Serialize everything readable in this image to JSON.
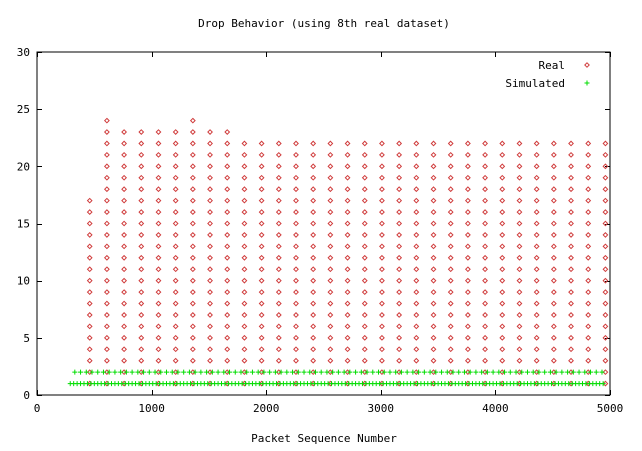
{
  "chart_data": {
    "type": "scatter",
    "title": "Drop Behavior (using 8th real dataset)",
    "xlabel": "Packet Sequence Number",
    "ylabel": "",
    "xlim": [
      0,
      5000
    ],
    "ylim": [
      0,
      30
    ],
    "xticks": [
      0,
      1000,
      2000,
      3000,
      4000,
      5000
    ],
    "yticks": [
      0,
      5,
      10,
      15,
      20,
      25,
      30
    ],
    "xtick_labels": [
      "0",
      "1000",
      "2000",
      "3000",
      "4000",
      "5000"
    ],
    "ytick_labels": [
      "0",
      "5",
      "10",
      "15",
      "20",
      "25",
      "30"
    ],
    "grid": false,
    "legend": {
      "position": "top-right"
    },
    "series": [
      {
        "name": "Real",
        "marker": "diamond",
        "color": "#d03c3c",
        "columns": [
          {
            "x": 460,
            "ymin": 1,
            "ymax": 17
          },
          {
            "x": 610,
            "ymin": 1,
            "ymax": 24
          },
          {
            "x": 760,
            "ymin": 1,
            "ymax": 23
          },
          {
            "x": 910,
            "ymin": 1,
            "ymax": 23
          },
          {
            "x": 1060,
            "ymin": 1,
            "ymax": 23
          },
          {
            "x": 1210,
            "ymin": 1,
            "ymax": 23
          },
          {
            "x": 1360,
            "ymin": 1,
            "ymax": 24
          },
          {
            "x": 1510,
            "ymin": 1,
            "ymax": 23
          },
          {
            "x": 1660,
            "ymin": 1,
            "ymax": 23
          },
          {
            "x": 1810,
            "ymin": 1,
            "ymax": 22
          },
          {
            "x": 1960,
            "ymin": 1,
            "ymax": 22
          },
          {
            "x": 2110,
            "ymin": 1,
            "ymax": 22
          },
          {
            "x": 2260,
            "ymin": 1,
            "ymax": 22
          },
          {
            "x": 2410,
            "ymin": 1,
            "ymax": 22
          },
          {
            "x": 2560,
            "ymin": 1,
            "ymax": 22
          },
          {
            "x": 2710,
            "ymin": 1,
            "ymax": 22
          },
          {
            "x": 2860,
            "ymin": 1,
            "ymax": 22
          },
          {
            "x": 3010,
            "ymin": 1,
            "ymax": 22
          },
          {
            "x": 3160,
            "ymin": 1,
            "ymax": 22
          },
          {
            "x": 3310,
            "ymin": 1,
            "ymax": 22
          },
          {
            "x": 3460,
            "ymin": 1,
            "ymax": 22
          },
          {
            "x": 3610,
            "ymin": 1,
            "ymax": 22
          },
          {
            "x": 3760,
            "ymin": 1,
            "ymax": 22
          },
          {
            "x": 3910,
            "ymin": 1,
            "ymax": 22
          },
          {
            "x": 4060,
            "ymin": 1,
            "ymax": 22
          },
          {
            "x": 4210,
            "ymin": 1,
            "ymax": 22
          },
          {
            "x": 4360,
            "ymin": 1,
            "ymax": 22
          },
          {
            "x": 4510,
            "ymin": 1,
            "ymax": 22
          },
          {
            "x": 4660,
            "ymin": 1,
            "ymax": 22
          },
          {
            "x": 4810,
            "ymin": 1,
            "ymax": 22
          },
          {
            "x": 4960,
            "ymin": 1,
            "ymax": 22
          }
        ]
      },
      {
        "name": "Simulated",
        "marker": "plus",
        "color": "#00dd00",
        "rows": [
          {
            "y": 1,
            "xmin": 290,
            "xmax": 4960,
            "step": 30
          },
          {
            "y": 2,
            "xmin": 330,
            "xmax": 4940,
            "step": 50
          }
        ]
      }
    ]
  }
}
